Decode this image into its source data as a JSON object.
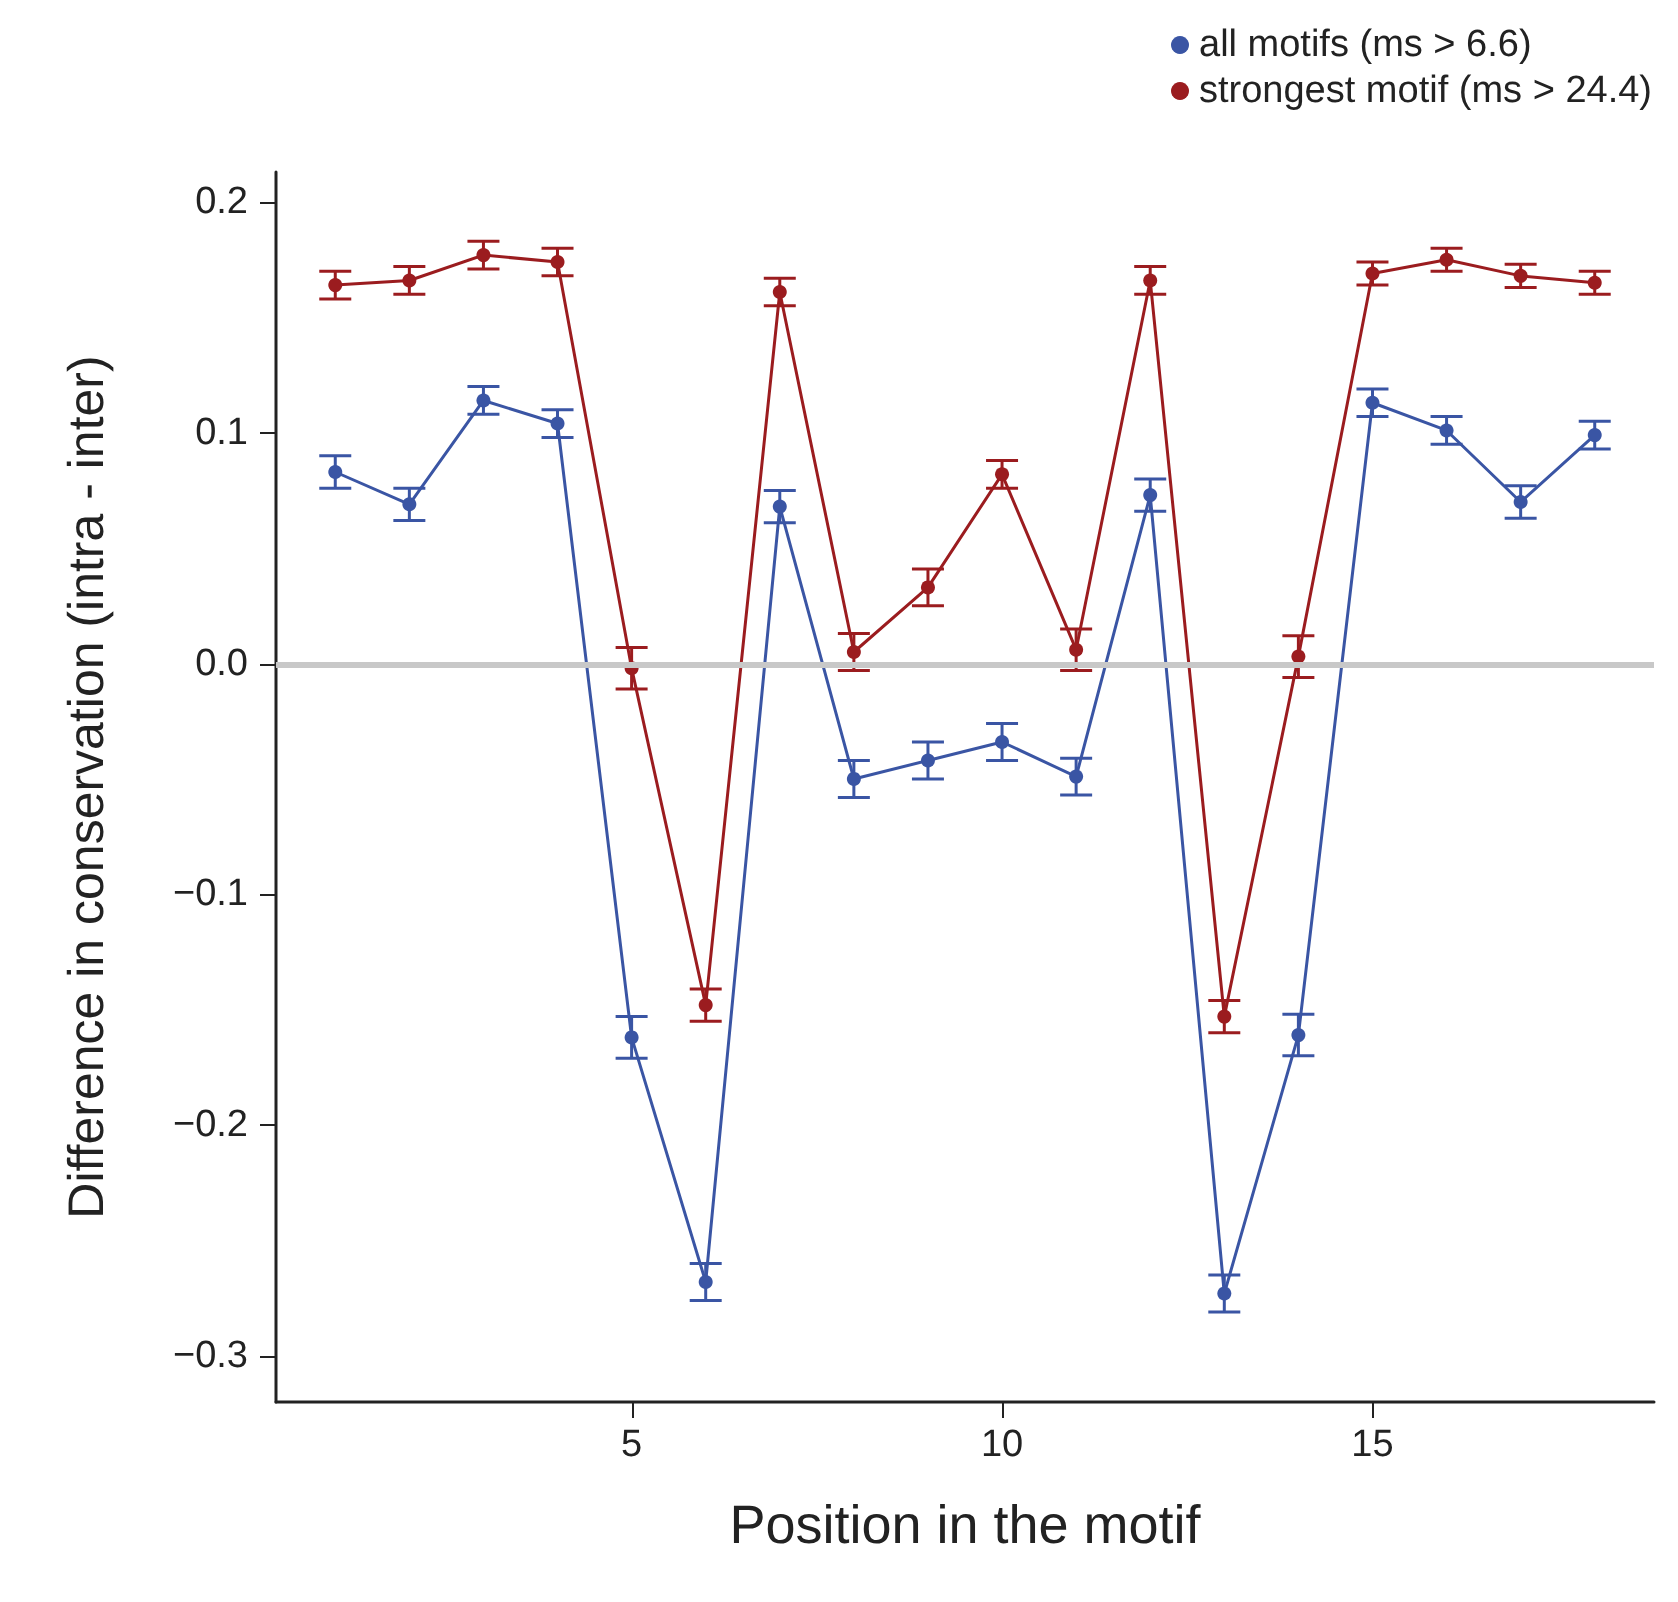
{
  "chart_data": {
    "type": "line",
    "xlabel": "Position in the motif",
    "ylabel": "Difference in conservation (intra - inter)",
    "x": [
      1,
      2,
      3,
      4,
      5,
      6,
      7,
      8,
      9,
      10,
      11,
      12,
      13,
      14,
      15,
      16,
      17,
      18
    ],
    "series": [
      {
        "name": "all motifs (ms > 6.6)",
        "color": "#3a55a4",
        "values": [
          0.083,
          0.069,
          0.114,
          0.104,
          -0.162,
          -0.268,
          0.068,
          -0.05,
          -0.042,
          -0.034,
          -0.049,
          0.073,
          -0.273,
          -0.161,
          0.113,
          0.101,
          0.07,
          0.099
        ],
        "errors": [
          0.007,
          0.007,
          0.006,
          0.006,
          0.009,
          0.008,
          0.007,
          0.008,
          0.008,
          0.008,
          0.008,
          0.007,
          0.008,
          0.009,
          0.006,
          0.006,
          0.007,
          0.006
        ]
      },
      {
        "name": "strongest motif (ms > 24.4)",
        "color": "#9b1c1f",
        "values": [
          0.164,
          0.166,
          0.177,
          0.174,
          -0.002,
          -0.148,
          0.161,
          0.005,
          0.033,
          0.082,
          0.006,
          0.166,
          -0.153,
          0.003,
          0.169,
          0.175,
          0.168,
          0.165
        ],
        "errors": [
          0.006,
          0.006,
          0.006,
          0.006,
          0.009,
          0.007,
          0.006,
          0.008,
          0.008,
          0.006,
          0.009,
          0.006,
          0.007,
          0.009,
          0.005,
          0.005,
          0.005,
          0.005
        ]
      }
    ],
    "xlim": [
      0.2,
      18.8
    ],
    "xticks": [
      5,
      10,
      15
    ],
    "ylim": [
      -0.32,
      0.213
    ],
    "yticks": [
      {
        "value": -0.3,
        "label": "−0.3"
      },
      {
        "value": -0.2,
        "label": "−0.2"
      },
      {
        "value": -0.1,
        "label": "−0.1"
      },
      {
        "value": 0,
        "label": "0.0"
      },
      {
        "value": 0.1,
        "label": "0.1"
      },
      {
        "value": 0.2,
        "label": "0.2"
      }
    ],
    "ref_lines": [
      {
        "axis": "y",
        "value": 0,
        "color": "#c8c8c8"
      }
    ],
    "legend": "top right",
    "marker": "circle",
    "line_style": "solid",
    "grid": false
  }
}
